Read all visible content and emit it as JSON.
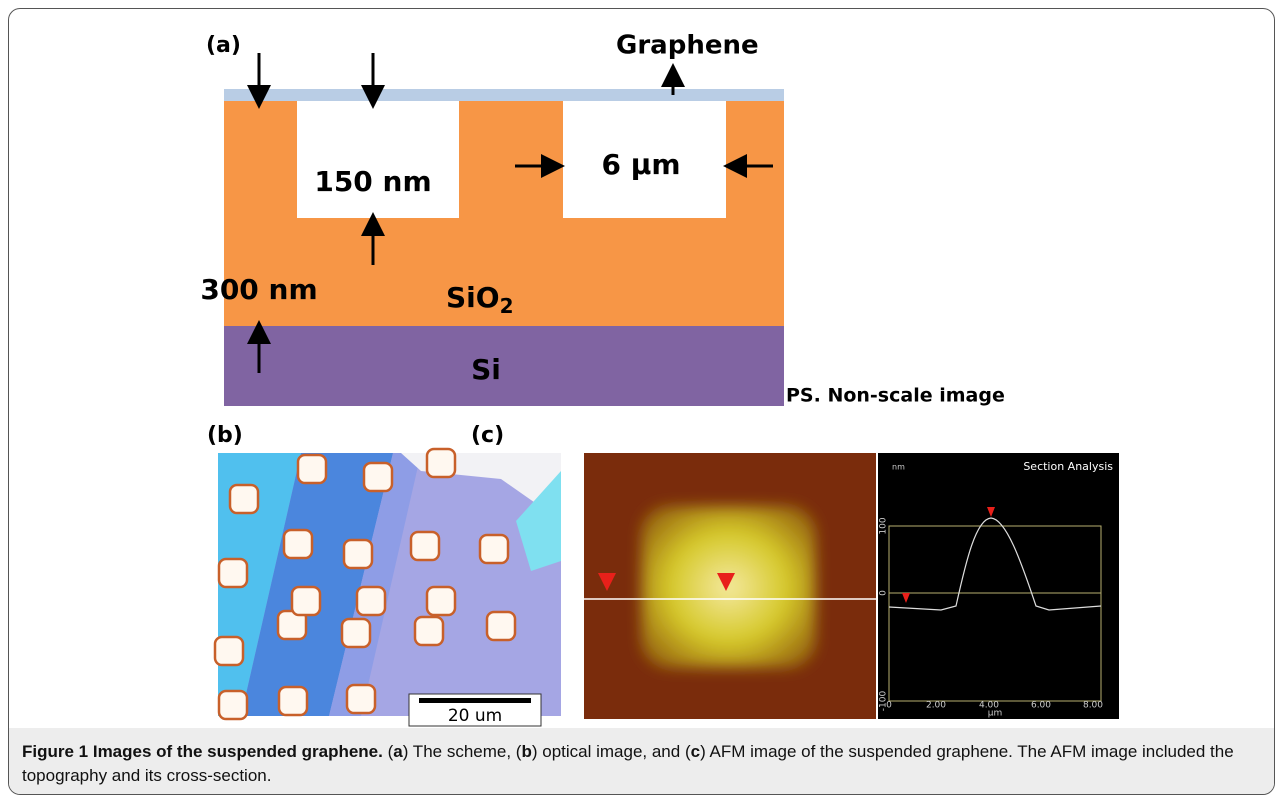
{
  "panel_a": {
    "label": "(a)",
    "graphene": "Graphene",
    "hole_depth": "150 nm",
    "hole_width": "6 μm",
    "oxide_thickness": "300 nm",
    "oxide": "SiO",
    "oxide_subscript": "2",
    "substrate": "Si",
    "note": "PS. Non-scale image"
  },
  "panel_b": {
    "label": "(b)",
    "scale_bar": "20 um"
  },
  "panel_c": {
    "label": "(c)",
    "section_title": "Section Analysis",
    "y_unit": "nm",
    "y_ticks": [
      "100",
      "0",
      "-100"
    ],
    "x_ticks": [
      "0",
      "2.00",
      "4.00",
      "6.00",
      "8.00"
    ],
    "x_unit": "μm"
  },
  "caption": {
    "title": "Figure 1 Images of the suspended graphene.",
    "parts": [
      "(",
      "a",
      ") The scheme, (",
      "b",
      ") optical image, and (",
      "c",
      ") AFM image of the suspended graphene. The AFM image included the topography and its cross-section."
    ]
  }
}
